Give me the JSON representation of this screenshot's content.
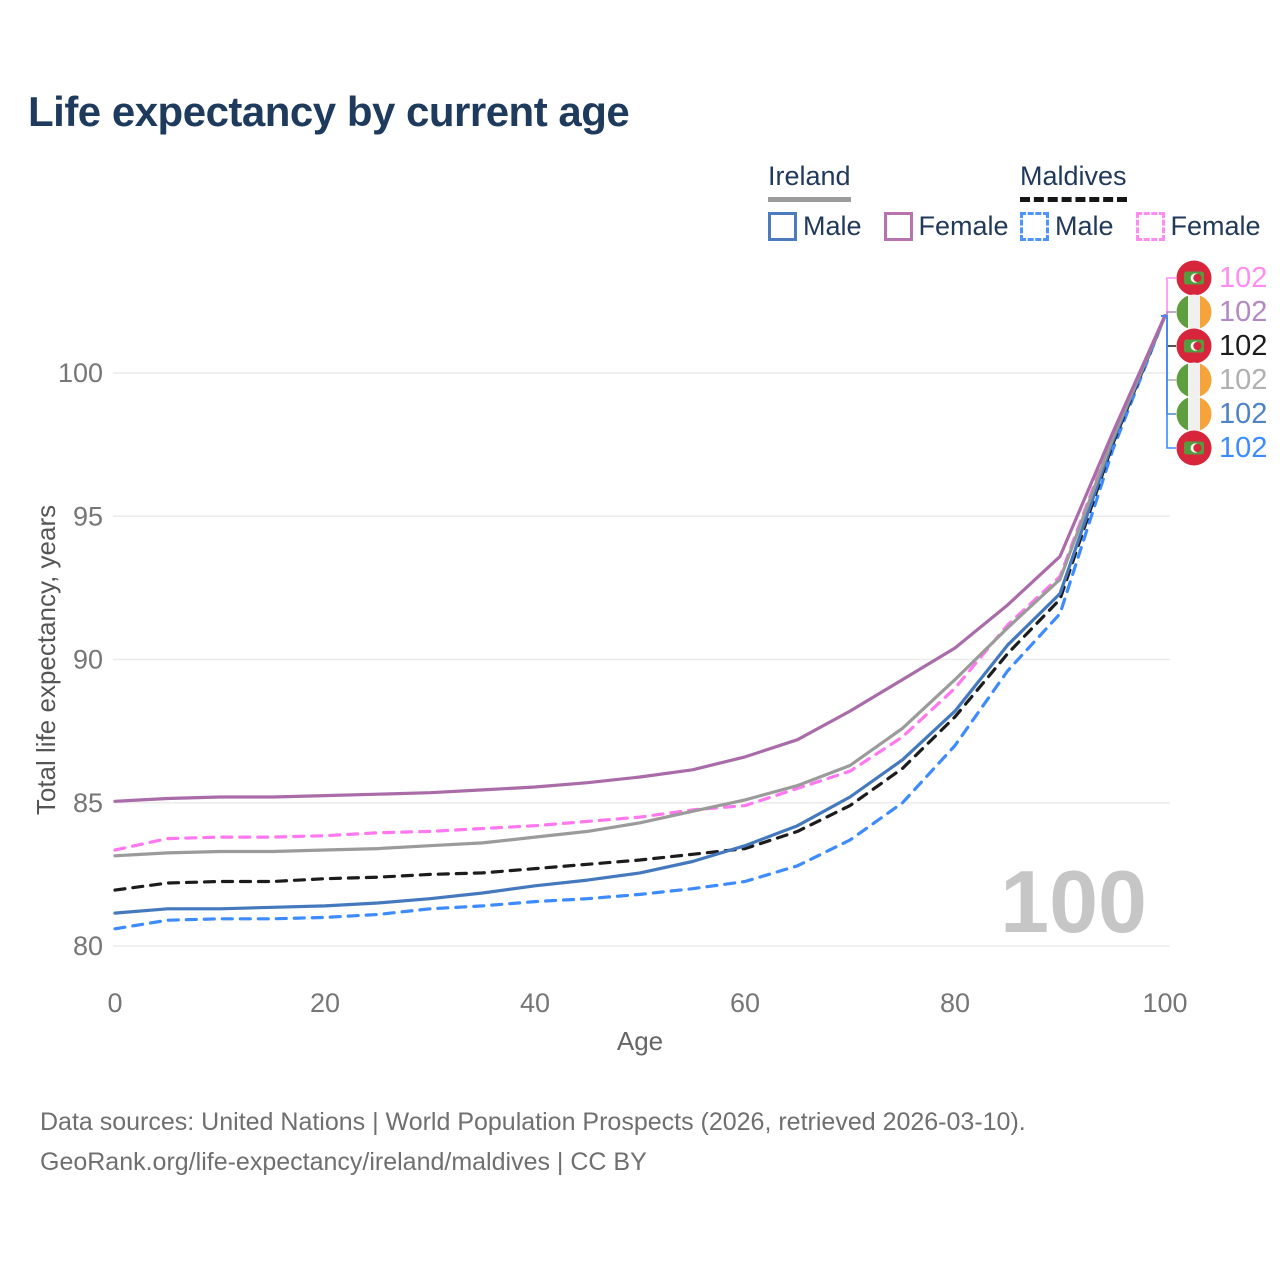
{
  "title": "Life expectancy by current age",
  "legend": {
    "groups": [
      {
        "name": "Ireland",
        "line_style": "solid",
        "underline_color": "#9c9c9c",
        "items": [
          {
            "label": "Male",
            "color": "#4d7cbe"
          },
          {
            "label": "Female",
            "color": "#b773ae"
          }
        ]
      },
      {
        "name": "Maldives",
        "line_style": "dashed",
        "underline_color": "#161616",
        "items": [
          {
            "label": "Male",
            "color": "#4d94ff"
          },
          {
            "label": "Female",
            "color": "#ff8cf0"
          }
        ]
      }
    ]
  },
  "watermark": "100",
  "footer": {
    "line1": "Data sources: United Nations | World Population Prospects (2026, retrieved 2026-03-10).",
    "line2": "GeoRank.org/life-expectancy/ireland/maldives | CC BY"
  },
  "chart_data": {
    "type": "line",
    "title": "Life expectancy by current age",
    "xlabel": "Age",
    "ylabel": "Total life expectancy, years",
    "x_ticks": [
      0,
      20,
      40,
      60,
      80,
      100
    ],
    "y_ticks": [
      80,
      85,
      90,
      95,
      100
    ],
    "xlim": [
      0,
      100
    ],
    "ylim": [
      80,
      103.3
    ],
    "grid": "horizontal",
    "x": [
      0,
      5,
      10,
      15,
      20,
      25,
      30,
      35,
      40,
      45,
      50,
      55,
      60,
      65,
      70,
      75,
      80,
      85,
      90,
      95,
      100
    ],
    "series": [
      {
        "name": "Maldives Male",
        "country": "Maldives",
        "sex": "male",
        "color": "#3d8bff",
        "dash": "dashed",
        "values": [
          80.6,
          80.9,
          80.95,
          80.95,
          81.0,
          81.1,
          81.3,
          81.4,
          81.55,
          81.65,
          81.8,
          82.0,
          82.25,
          82.8,
          83.7,
          85.0,
          87.0,
          89.6,
          91.6,
          97.3,
          102
        ]
      },
      {
        "name": "Maldives Both sexes",
        "country": "Maldives",
        "sex": "both",
        "color": "#1c1c1c",
        "dash": "dashed",
        "values": [
          81.95,
          82.2,
          82.25,
          82.25,
          82.35,
          82.4,
          82.5,
          82.55,
          82.7,
          82.85,
          83.0,
          83.2,
          83.4,
          84.0,
          84.9,
          86.2,
          88.0,
          90.2,
          92.1,
          97.5,
          102
        ]
      },
      {
        "name": "Maldives Female",
        "country": "Maldives",
        "sex": "female",
        "color": "#ff78f0",
        "dash": "dashed",
        "values": [
          83.35,
          83.75,
          83.8,
          83.8,
          83.85,
          83.95,
          84.0,
          84.1,
          84.2,
          84.35,
          84.5,
          84.75,
          84.9,
          85.5,
          86.1,
          87.3,
          89.0,
          91.2,
          92.9,
          97.8,
          102
        ]
      },
      {
        "name": "Ireland Male",
        "country": "Ireland",
        "sex": "male",
        "color": "#4579bd",
        "dash": "solid",
        "values": [
          81.15,
          81.3,
          81.3,
          81.35,
          81.4,
          81.5,
          81.65,
          81.85,
          82.1,
          82.3,
          82.55,
          82.95,
          83.5,
          84.2,
          85.2,
          86.5,
          88.2,
          90.5,
          92.3,
          97.6,
          102
        ]
      },
      {
        "name": "Ireland Both sexes",
        "country": "Ireland",
        "sex": "both",
        "color": "#9b9b9b",
        "dash": "solid",
        "values": [
          83.15,
          83.25,
          83.3,
          83.3,
          83.35,
          83.4,
          83.5,
          83.6,
          83.8,
          84.0,
          84.3,
          84.7,
          85.1,
          85.6,
          86.3,
          87.6,
          89.3,
          91.1,
          92.8,
          97.7,
          102
        ]
      },
      {
        "name": "Ireland Female",
        "country": "Ireland",
        "sex": "female",
        "color": "#a96ca8",
        "dash": "solid",
        "values": [
          85.05,
          85.15,
          85.2,
          85.2,
          85.25,
          85.3,
          85.35,
          85.45,
          85.55,
          85.7,
          85.9,
          86.15,
          86.6,
          87.2,
          88.2,
          89.3,
          90.4,
          91.9,
          93.6,
          97.9,
          102
        ]
      }
    ],
    "end_labels": [
      {
        "value": "102",
        "color": "#ff8cf0",
        "flag": "maldives",
        "series": "Maldives Female"
      },
      {
        "value": "102",
        "color": "#b488c4",
        "flag": "ireland",
        "series": "Ireland Female"
      },
      {
        "value": "102",
        "color": "#1c1c1c",
        "flag": "maldives",
        "series": "Maldives Both sexes"
      },
      {
        "value": "102",
        "color": "#b0b0b0",
        "flag": "ireland",
        "series": "Ireland Both sexes"
      },
      {
        "value": "102",
        "color": "#4f83c6",
        "flag": "ireland",
        "series": "Ireland Male"
      },
      {
        "value": "102",
        "color": "#3d8bff",
        "flag": "maldives",
        "series": "Maldives Male"
      }
    ],
    "flag_colors": {
      "maldives": {
        "bg": "#d7263b",
        "rect": "#559b3e",
        "crescent": "#ffffff"
      },
      "ireland": {
        "left": "#5f9e3e",
        "mid": "#f0f0ee",
        "right": "#f6a33a"
      }
    }
  }
}
